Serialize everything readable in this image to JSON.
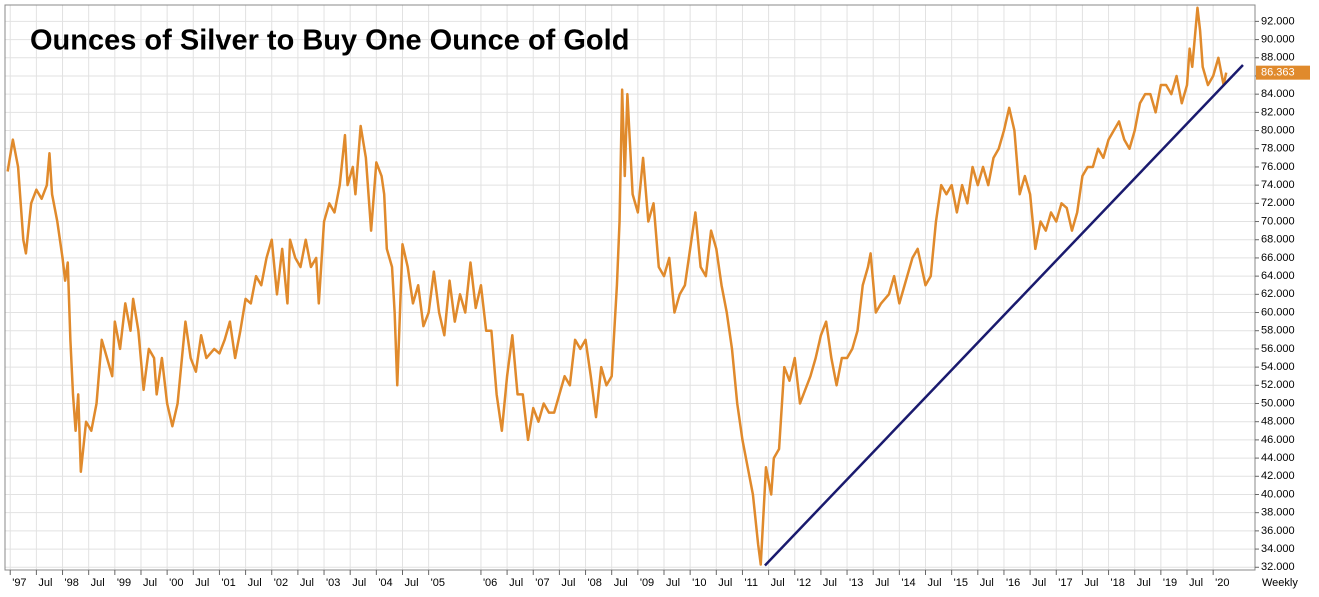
{
  "chart_data": {
    "type": "line",
    "title": "Ounces of Silver to Buy One Ounce of Gold",
    "frequency_label": "Weekly",
    "grid": true,
    "xlim": [
      1996.9,
      2020.8
    ],
    "ylim": [
      31.7,
      93.8
    ],
    "yticks": [
      {
        "value": 32,
        "label": "32.000"
      },
      {
        "value": 34,
        "label": "34.000"
      },
      {
        "value": 36,
        "label": "36.000"
      },
      {
        "value": 38,
        "label": "38.000"
      },
      {
        "value": 40,
        "label": "40.000"
      },
      {
        "value": 42,
        "label": "42.000"
      },
      {
        "value": 44,
        "label": "44.000"
      },
      {
        "value": 46,
        "label": "46.000"
      },
      {
        "value": 48,
        "label": "48.000"
      },
      {
        "value": 50,
        "label": "50.000"
      },
      {
        "value": 52,
        "label": "52.000"
      },
      {
        "value": 54,
        "label": "54.000"
      },
      {
        "value": 56,
        "label": "56.000"
      },
      {
        "value": 58,
        "label": "58.000"
      },
      {
        "value": 60,
        "label": "60.000"
      },
      {
        "value": 62,
        "label": "62.000"
      },
      {
        "value": 64,
        "label": "64.000"
      },
      {
        "value": 66,
        "label": "66.000"
      },
      {
        "value": 68,
        "label": "68.000"
      },
      {
        "value": 70,
        "label": "70.000"
      },
      {
        "value": 72,
        "label": "72.000"
      },
      {
        "value": 74,
        "label": "74.000"
      },
      {
        "value": 76,
        "label": "76.000"
      },
      {
        "value": 78,
        "label": "78.000"
      },
      {
        "value": 80,
        "label": "80.000"
      },
      {
        "value": 82,
        "label": "82.000"
      },
      {
        "value": 84,
        "label": "84.000"
      },
      {
        "value": 86,
        "label": "86.000"
      },
      {
        "value": 88,
        "label": "88.000"
      },
      {
        "value": 90,
        "label": "90.000"
      },
      {
        "value": 92,
        "label": "92.000"
      }
    ],
    "xticks": [
      {
        "value": 1997,
        "label": "'97"
      },
      {
        "value": 1997.5,
        "label": "Jul"
      },
      {
        "value": 1998,
        "label": "'98"
      },
      {
        "value": 1998.5,
        "label": "Jul"
      },
      {
        "value": 1999,
        "label": "'99"
      },
      {
        "value": 1999.5,
        "label": "Jul"
      },
      {
        "value": 2000,
        "label": "'00"
      },
      {
        "value": 2000.5,
        "label": "Jul"
      },
      {
        "value": 2001,
        "label": "'01"
      },
      {
        "value": 2001.5,
        "label": "Jul"
      },
      {
        "value": 2002,
        "label": "'02"
      },
      {
        "value": 2002.5,
        "label": "Jul"
      },
      {
        "value": 2003,
        "label": "'03"
      },
      {
        "value": 2003.5,
        "label": "Jul"
      },
      {
        "value": 2004,
        "label": "'04"
      },
      {
        "value": 2004.5,
        "label": "Jul"
      },
      {
        "value": 2005,
        "label": "'05"
      },
      {
        "value": 2006,
        "label": "'06"
      },
      {
        "value": 2006.5,
        "label": "Jul"
      },
      {
        "value": 2007,
        "label": "'07"
      },
      {
        "value": 2007.5,
        "label": "Jul"
      },
      {
        "value": 2008,
        "label": "'08"
      },
      {
        "value": 2008.5,
        "label": "Jul"
      },
      {
        "value": 2009,
        "label": "'09"
      },
      {
        "value": 2009.5,
        "label": "Jul"
      },
      {
        "value": 2010,
        "label": "'10"
      },
      {
        "value": 2010.5,
        "label": "Jul"
      },
      {
        "value": 2011,
        "label": "'11"
      },
      {
        "value": 2011.5,
        "label": "Jul"
      },
      {
        "value": 2012,
        "label": "'12"
      },
      {
        "value": 2012.5,
        "label": "Jul"
      },
      {
        "value": 2013,
        "label": "'13"
      },
      {
        "value": 2013.5,
        "label": "Jul"
      },
      {
        "value": 2014,
        "label": "'14"
      },
      {
        "value": 2014.5,
        "label": "Jul"
      },
      {
        "value": 2015,
        "label": "'15"
      },
      {
        "value": 2015.5,
        "label": "Jul"
      },
      {
        "value": 2016,
        "label": "'16"
      },
      {
        "value": 2016.5,
        "label": "Jul"
      },
      {
        "value": 2017,
        "label": "'17"
      },
      {
        "value": 2017.5,
        "label": "Jul"
      },
      {
        "value": 2018,
        "label": "'18"
      },
      {
        "value": 2018.5,
        "label": "Jul"
      },
      {
        "value": 2019,
        "label": "'19"
      },
      {
        "value": 2019.5,
        "label": "Jul"
      },
      {
        "value": 2020,
        "label": "'20"
      }
    ],
    "series": [
      {
        "color": "#e08a2c",
        "x": [
          1996.95,
          1997.05,
          1997.15,
          1997.25,
          1997.3,
          1997.4,
          1997.5,
          1997.6,
          1997.7,
          1997.75,
          1997.8,
          1997.9,
          1998.0,
          1998.05,
          1998.1,
          1998.15,
          1998.2,
          1998.25,
          1998.3,
          1998.35,
          1998.45,
          1998.55,
          1998.65,
          1998.75,
          1998.85,
          1998.95,
          1999.0,
          1999.1,
          1999.2,
          1999.3,
          1999.35,
          1999.45,
          1999.55,
          1999.65,
          1999.75,
          1999.8,
          1999.9,
          2000.0,
          2000.1,
          2000.2,
          2000.35,
          2000.45,
          2000.55,
          2000.65,
          2000.75,
          2000.9,
          2001.0,
          2001.1,
          2001.2,
          2001.3,
          2001.4,
          2001.5,
          2001.6,
          2001.7,
          2001.8,
          2001.9,
          2002.0,
          2002.1,
          2002.2,
          2002.3,
          2002.35,
          2002.45,
          2002.55,
          2002.65,
          2002.75,
          2002.85,
          2002.9,
          2003.0,
          2003.1,
          2003.2,
          2003.3,
          2003.4,
          2003.45,
          2003.55,
          2003.6,
          2003.7,
          2003.8,
          2003.9,
          2004.0,
          2004.1,
          2004.15,
          2004.2,
          2004.3,
          2004.35,
          2004.4,
          2004.5,
          2004.6,
          2004.7,
          2004.8,
          2004.9,
          2005.0,
          2005.1,
          2005.2,
          2005.3,
          2005.4,
          2005.5,
          2005.6,
          2005.7,
          2005.8,
          2005.9,
          2006.0,
          2006.1,
          2006.2,
          2006.3,
          2006.4,
          2006.5,
          2006.6,
          2006.7,
          2006.8,
          2006.9,
          2007.0,
          2007.1,
          2007.2,
          2007.3,
          2007.4,
          2007.5,
          2007.6,
          2007.7,
          2007.8,
          2007.9,
          2008.0,
          2008.1,
          2008.2,
          2008.3,
          2008.4,
          2008.5,
          2008.6,
          2008.65,
          2008.7,
          2008.75,
          2008.8,
          2008.9,
          2009.0,
          2009.1,
          2009.2,
          2009.3,
          2009.4,
          2009.5,
          2009.6,
          2009.7,
          2009.8,
          2009.9,
          2010.0,
          2010.1,
          2010.2,
          2010.3,
          2010.4,
          2010.5,
          2010.6,
          2010.7,
          2010.8,
          2010.9,
          2011.0,
          2011.1,
          2011.2,
          2011.3,
          2011.35,
          2011.45,
          2011.55,
          2011.6,
          2011.7,
          2011.8,
          2011.9,
          2012.0,
          2012.1,
          2012.2,
          2012.3,
          2012.4,
          2012.5,
          2012.6,
          2012.7,
          2012.8,
          2012.9,
          2013.0,
          2013.1,
          2013.2,
          2013.3,
          2013.4,
          2013.45,
          2013.55,
          2013.65,
          2013.8,
          2013.9,
          2014.0,
          2014.1,
          2014.25,
          2014.35,
          2014.5,
          2014.6,
          2014.7,
          2014.8,
          2014.9,
          2015.0,
          2015.1,
          2015.2,
          2015.3,
          2015.4,
          2015.5,
          2015.6,
          2015.7,
          2015.8,
          2015.9,
          2016.0,
          2016.1,
          2016.2,
          2016.3,
          2016.4,
          2016.5,
          2016.6,
          2016.7,
          2016.8,
          2016.9,
          2017.0,
          2017.1,
          2017.2,
          2017.3,
          2017.4,
          2017.5,
          2017.6,
          2017.7,
          2017.8,
          2017.9,
          2018.0,
          2018.1,
          2018.2,
          2018.3,
          2018.4,
          2018.5,
          2018.6,
          2018.7,
          2018.8,
          2018.9,
          2019.0,
          2019.1,
          2019.2,
          2019.3,
          2019.4,
          2019.5,
          2019.55,
          2019.6,
          2019.7,
          2019.75,
          2019.8,
          2019.9,
          2020.0,
          2020.1,
          2020.2,
          2020.25
        ],
        "values": [
          75.5,
          79,
          76,
          68,
          66.5,
          72,
          73.5,
          72.5,
          74,
          77.5,
          73,
          70,
          66,
          63.5,
          65.5,
          57,
          51,
          47,
          51,
          42.5,
          48,
          47,
          50,
          57,
          55,
          53,
          59,
          56,
          61,
          58,
          61.5,
          58,
          51.5,
          56,
          55,
          51,
          55,
          50,
          47.5,
          50,
          59,
          55,
          53.5,
          57.5,
          55,
          56,
          55.5,
          57,
          59,
          55,
          58,
          61.5,
          61,
          64,
          63,
          66,
          68,
          62,
          67,
          61,
          68,
          66,
          65,
          68,
          65,
          66,
          61,
          70,
          72,
          71,
          74,
          79.5,
          74,
          76,
          73,
          80.5,
          77,
          69,
          76.5,
          75,
          73,
          67,
          65,
          60,
          52,
          67.5,
          65,
          61,
          63,
          58.5,
          60,
          64.5,
          60,
          57.5,
          63.5,
          59,
          62,
          60,
          65.5,
          60.5,
          63,
          58,
          58,
          51,
          47,
          53,
          57.5,
          51,
          51,
          46,
          49.5,
          48,
          50,
          49,
          49,
          51,
          53,
          52,
          57,
          56,
          57,
          53,
          48.5,
          54,
          52,
          53,
          63,
          70,
          84.5,
          75,
          84,
          73,
          71,
          77,
          70,
          72,
          65,
          64,
          66,
          60,
          62,
          63,
          67,
          71,
          65,
          64,
          69,
          67,
          63,
          60,
          56,
          50,
          46,
          43,
          40,
          34.5,
          32.3,
          43,
          40,
          44,
          45,
          54,
          52.5,
          55,
          50,
          51.5,
          53,
          55,
          57.5,
          59,
          55,
          52,
          55,
          55,
          56,
          58,
          63,
          65,
          66.5,
          60,
          61,
          62,
          64,
          61,
          63,
          66,
          67,
          63,
          64,
          70,
          74,
          73,
          74,
          71,
          74,
          72,
          76,
          74,
          76,
          74,
          77,
          78,
          80,
          82.5,
          80,
          73,
          75,
          73,
          67,
          70,
          69,
          71,
          70,
          72,
          71.5,
          69,
          71,
          75,
          76,
          76,
          78,
          77,
          79,
          80,
          81,
          79,
          78,
          80,
          83,
          84,
          84,
          82,
          85,
          85,
          84,
          86,
          83,
          85,
          89,
          87,
          93.5,
          91,
          87,
          85,
          86,
          88,
          85,
          86.363
        ]
      },
      {
        "color": "#1a1a6e",
        "x": [
          2011.43,
          2020.57
        ],
        "values": [
          32.2,
          87.2
        ]
      }
    ]
  }
}
